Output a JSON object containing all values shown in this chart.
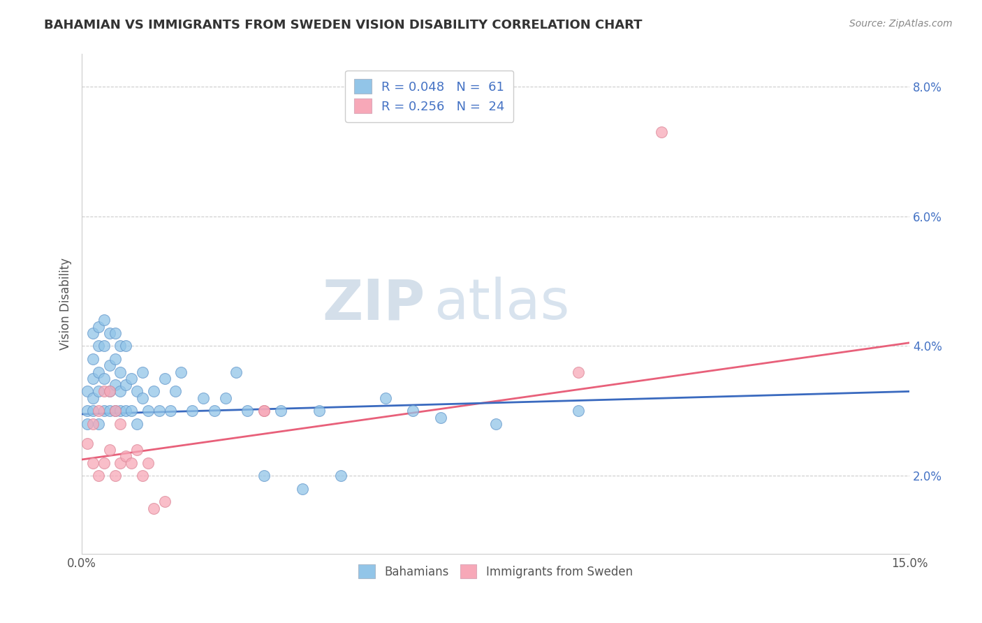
{
  "title": "BAHAMIAN VS IMMIGRANTS FROM SWEDEN VISION DISABILITY CORRELATION CHART",
  "source_text": "Source: ZipAtlas.com",
  "ylabel": "Vision Disability",
  "xlim": [
    0.0,
    0.15
  ],
  "ylim": [
    0.008,
    0.085
  ],
  "yticks": [
    0.02,
    0.04,
    0.06,
    0.08
  ],
  "yticklabels": [
    "2.0%",
    "4.0%",
    "6.0%",
    "8.0%"
  ],
  "legend_r1": "R = 0.048",
  "legend_n1": "N =  61",
  "legend_r2": "R = 0.256",
  "legend_n2": "N =  24",
  "color_blue": "#92c5e8",
  "color_pink": "#f7a8b8",
  "line_blue": "#3a6abf",
  "line_pink": "#e8607a",
  "watermark_zip": "ZIP",
  "watermark_atlas": "atlas",
  "bahamian_x": [
    0.001,
    0.001,
    0.001,
    0.002,
    0.002,
    0.002,
    0.002,
    0.002,
    0.003,
    0.003,
    0.003,
    0.003,
    0.003,
    0.004,
    0.004,
    0.004,
    0.004,
    0.005,
    0.005,
    0.005,
    0.005,
    0.006,
    0.006,
    0.006,
    0.006,
    0.007,
    0.007,
    0.007,
    0.007,
    0.008,
    0.008,
    0.008,
    0.009,
    0.009,
    0.01,
    0.01,
    0.011,
    0.011,
    0.012,
    0.013,
    0.014,
    0.015,
    0.016,
    0.017,
    0.018,
    0.02,
    0.022,
    0.024,
    0.026,
    0.028,
    0.03,
    0.033,
    0.036,
    0.04,
    0.043,
    0.047,
    0.055,
    0.06,
    0.065,
    0.075,
    0.09
  ],
  "bahamian_y": [
    0.03,
    0.033,
    0.028,
    0.035,
    0.032,
    0.038,
    0.03,
    0.042,
    0.028,
    0.033,
    0.036,
    0.04,
    0.043,
    0.03,
    0.035,
    0.04,
    0.044,
    0.03,
    0.033,
    0.037,
    0.042,
    0.03,
    0.034,
    0.038,
    0.042,
    0.03,
    0.033,
    0.036,
    0.04,
    0.03,
    0.034,
    0.04,
    0.03,
    0.035,
    0.028,
    0.033,
    0.032,
    0.036,
    0.03,
    0.033,
    0.03,
    0.035,
    0.03,
    0.033,
    0.036,
    0.03,
    0.032,
    0.03,
    0.032,
    0.036,
    0.03,
    0.02,
    0.03,
    0.018,
    0.03,
    0.02,
    0.032,
    0.03,
    0.029,
    0.028,
    0.03
  ],
  "sweden_x": [
    0.001,
    0.002,
    0.002,
    0.003,
    0.003,
    0.004,
    0.004,
    0.005,
    0.005,
    0.006,
    0.006,
    0.007,
    0.007,
    0.008,
    0.009,
    0.01,
    0.011,
    0.012,
    0.013,
    0.015,
    0.033,
    0.033,
    0.09,
    0.105
  ],
  "sweden_y": [
    0.025,
    0.022,
    0.028,
    0.02,
    0.03,
    0.022,
    0.033,
    0.024,
    0.033,
    0.02,
    0.03,
    0.022,
    0.028,
    0.023,
    0.022,
    0.024,
    0.02,
    0.022,
    0.015,
    0.016,
    0.03,
    0.03,
    0.036,
    0.073
  ]
}
